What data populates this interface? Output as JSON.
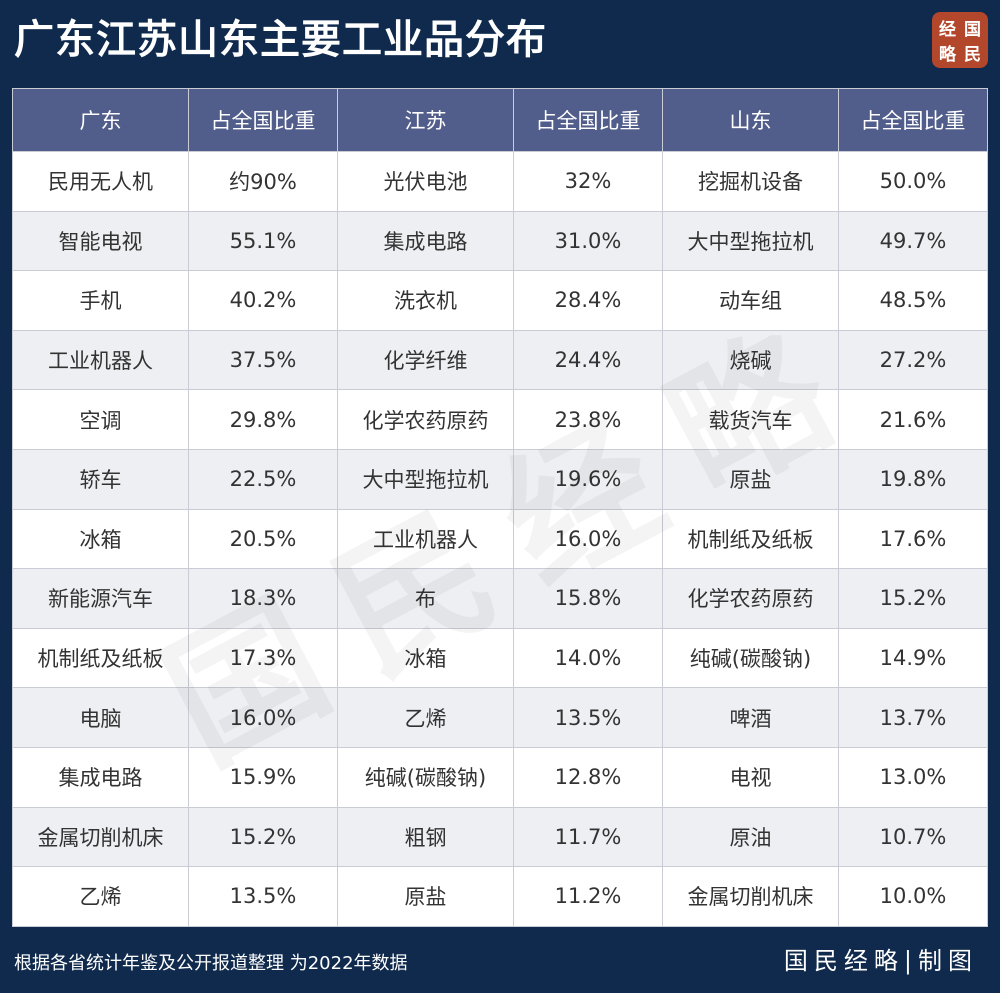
{
  "title": "广东江苏山东主要工业品分布",
  "logo": {
    "chars": [
      "经",
      "国",
      "略",
      "民"
    ]
  },
  "watermark": "国民经略",
  "table": {
    "headers": [
      "广东",
      "占全国比重",
      "江苏",
      "占全国比重",
      "山东",
      "占全国比重"
    ],
    "rows": [
      [
        "民用无人机",
        "约90%",
        "光伏电池",
        "32%",
        "挖掘机设备",
        "50.0%"
      ],
      [
        "智能电视",
        "55.1%",
        "集成电路",
        "31.0%",
        "大中型拖拉机",
        "49.7%"
      ],
      [
        "手机",
        "40.2%",
        "洗衣机",
        "28.4%",
        "动车组",
        "48.5%"
      ],
      [
        "工业机器人",
        "37.5%",
        "化学纤维",
        "24.4%",
        "烧碱",
        "27.2%"
      ],
      [
        "空调",
        "29.8%",
        "化学农药原药",
        "23.8%",
        "载货汽车",
        "21.6%"
      ],
      [
        "轿车",
        "22.5%",
        "大中型拖拉机",
        "19.6%",
        "原盐",
        "19.8%"
      ],
      [
        "冰箱",
        "20.5%",
        "工业机器人",
        "16.0%",
        "机制纸及纸板",
        "17.6%"
      ],
      [
        "新能源汽车",
        "18.3%",
        "布",
        "15.8%",
        "化学农药原药",
        "15.2%"
      ],
      [
        "机制纸及纸板",
        "17.3%",
        "冰箱",
        "14.0%",
        "纯碱(碳酸钠)",
        "14.9%"
      ],
      [
        "电脑",
        "16.0%",
        "乙烯",
        "13.5%",
        "啤酒",
        "13.7%"
      ],
      [
        "集成电路",
        "15.9%",
        "纯碱(碳酸钠)",
        "12.8%",
        "电视",
        "13.0%"
      ],
      [
        "金属切削机床",
        "15.2%",
        "粗钢",
        "11.7%",
        "原油",
        "10.7%"
      ],
      [
        "乙烯",
        "13.5%",
        "原盐",
        "11.2%",
        "金属切削机床",
        "10.0%"
      ]
    ]
  },
  "footer": {
    "source": "根据各省统计年鉴及公开报道整理 为2022年数据",
    "brand": "国民经略|制图"
  },
  "colors": {
    "background": "#0f2a4d",
    "header_bg": "#515d8a",
    "logo_bg": "#b3472b"
  }
}
